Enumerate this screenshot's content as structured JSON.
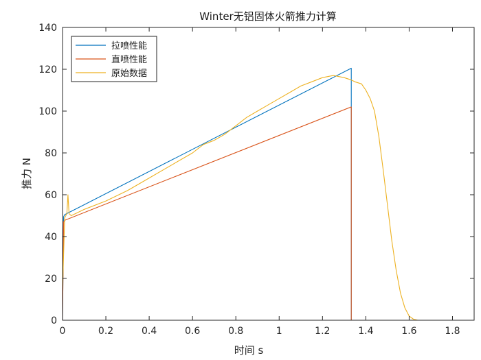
{
  "chart_data": {
    "type": "line",
    "title": "Winter无铝固体火箭推力计算",
    "xlabel": "时间 s",
    "ylabel": "推力 N",
    "xlim": [
      0,
      1.9
    ],
    "ylim": [
      0,
      140
    ],
    "xticks": [
      "0",
      "0.2",
      "0.4",
      "0.6",
      "0.8",
      "1",
      "1.2",
      "1.4",
      "1.6",
      "1.8"
    ],
    "yticks": [
      "0",
      "20",
      "40",
      "60",
      "80",
      "100",
      "120",
      "140"
    ],
    "grid": false,
    "legend_position": "top-left",
    "series": [
      {
        "name": "拉喷性能",
        "color": "#0072BD",
        "x": [
          0,
          0.005,
          0.01,
          1.333,
          1.333,
          1.9
        ],
        "y": [
          0,
          49.5,
          50.5,
          120.5,
          0,
          0
        ]
      },
      {
        "name": "直喷性能",
        "color": "#D95319",
        "x": [
          0,
          0.005,
          0.01,
          1.333,
          1.333,
          1.9
        ],
        "y": [
          0,
          47,
          47.8,
          102,
          0,
          0
        ]
      },
      {
        "name": "原始数据",
        "color": "#EDB120",
        "x": [
          0,
          0.01,
          0.02,
          0.025,
          0.03,
          0.04,
          0.06,
          0.1,
          0.2,
          0.3,
          0.4,
          0.5,
          0.6,
          0.65,
          0.7,
          0.75,
          0.8,
          0.85,
          0.9,
          0.95,
          1.0,
          1.05,
          1.1,
          1.15,
          1.2,
          1.25,
          1.3,
          1.33,
          1.35,
          1.38,
          1.4,
          1.42,
          1.44,
          1.46,
          1.48,
          1.5,
          1.52,
          1.54,
          1.56,
          1.58,
          1.6,
          1.62,
          1.64
        ],
        "y": [
          15,
          49,
          51,
          60,
          51,
          50,
          51,
          53,
          57,
          62,
          68,
          74,
          80,
          84,
          86,
          89,
          93,
          97,
          100,
          103,
          106,
          109,
          112,
          114,
          116,
          117,
          116,
          115,
          114,
          113,
          110,
          106,
          100,
          88,
          72,
          55,
          38,
          24,
          13,
          6,
          2,
          0.5,
          0
        ]
      }
    ]
  }
}
